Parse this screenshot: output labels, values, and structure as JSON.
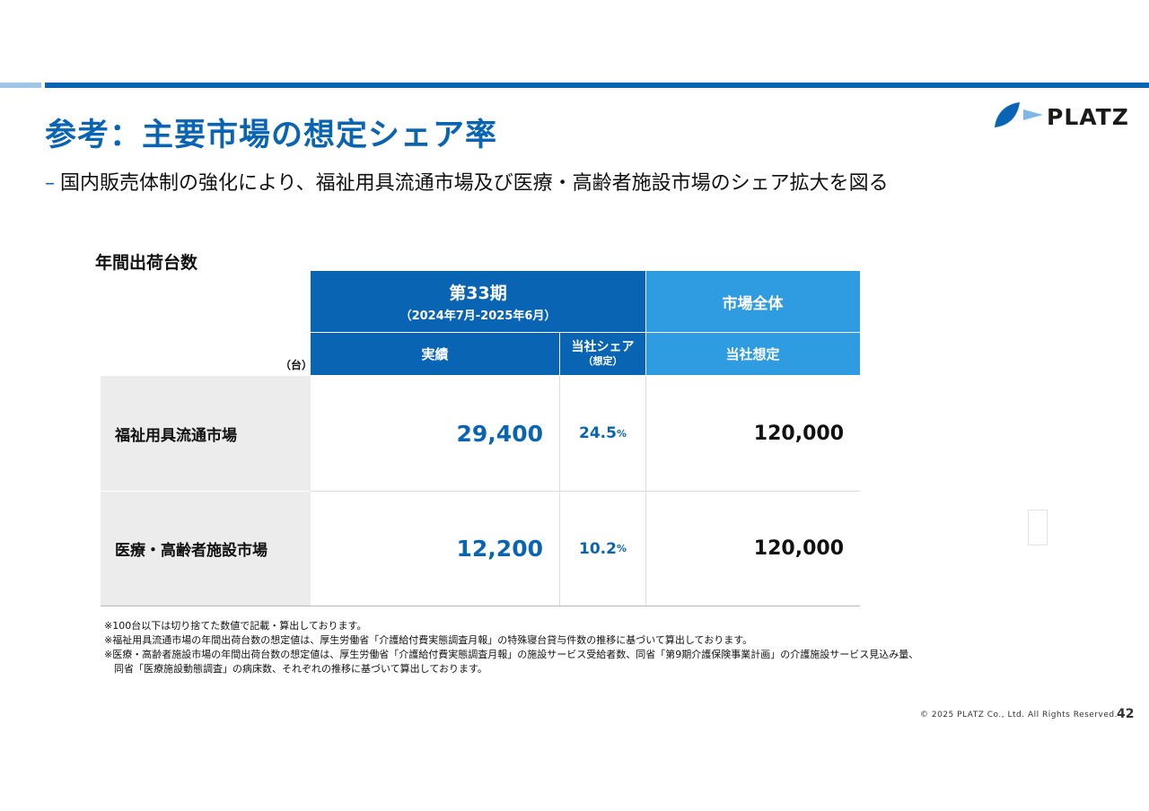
{
  "header": {
    "title": "参考：主要市場の想定シェア率",
    "logo_text": "PLATZ",
    "brand_color": "#0a64b4",
    "accent_light": "#2f9be0"
  },
  "subtitle": {
    "dash": "–",
    "text": "国内販売体制の強化により、福祉用具流通市場及び医療・高齢者施設市場のシェア拡大を図る"
  },
  "table": {
    "label": "年間出荷台数",
    "unit": "（台）",
    "period_title": "第33期",
    "period_range": "（2024年7月-2025年6月）",
    "market_total": "市場全体",
    "col_actual": "実績",
    "col_share": "当社シェア",
    "col_share_sub": "（想定）",
    "col_estimate": "当社想定",
    "rows": [
      {
        "name": "福祉用具流通市場",
        "actual": "29,400",
        "share": "24.5",
        "share_unit": "%",
        "estimate": "120,000"
      },
      {
        "name": "医療・高齢者施設市場",
        "actual": "12,200",
        "share": "10.2",
        "share_unit": "%",
        "estimate": "120,000"
      }
    ]
  },
  "notes": [
    "※100台以下は切り捨てた数値で記載・算出しております。",
    "※福祉用具流通市場の年間出荷台数の想定値は、厚生労働省「介護給付費実態調査月報」の特殊寝台貸与件数の推移に基づいて算出しております。",
    "※医療・高齢者施設市場の年間出荷台数の想定値は、厚生労働省「介護給付費実態調査月報」の施設サービス受給者数、同省「第9期介護保険事業計画」の介護施設サービス見込み量、",
    "　同省「医療施設動態調査」の病床数、それぞれの推移に基づいて算出しております。"
  ],
  "footer": {
    "copyright": "© 2025 PLATZ Co., Ltd. All Rights Reserved.",
    "page_number": "42"
  }
}
